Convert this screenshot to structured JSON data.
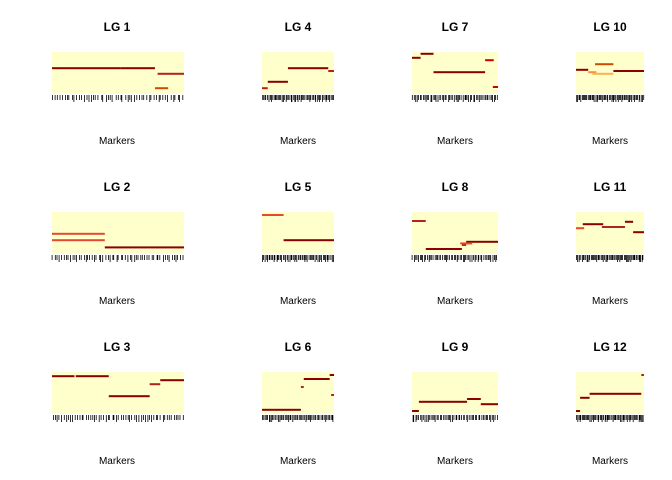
{
  "chart_data": [
    {
      "title": "LG 1",
      "xlabel": "Markers",
      "type": "heatmap",
      "background_color": "#FFFFCC",
      "segments": [
        {
          "row": 0.38,
          "x0": 0.0,
          "x1": 0.52,
          "color": "#8B0000"
        },
        {
          "row": 0.38,
          "x0": 0.52,
          "x1": 0.78,
          "color": "#8B0000"
        },
        {
          "row": 0.52,
          "x0": 0.8,
          "x1": 1.0,
          "color": "#B22222"
        },
        {
          "row": 0.88,
          "x0": 0.78,
          "x1": 0.88,
          "color": "#CC4C02"
        }
      ],
      "tick_count": 55
    },
    {
      "title": "LG 2",
      "xlabel": "Markers",
      "type": "heatmap",
      "background_color": "#FFFFCC",
      "segments": [
        {
          "row": 0.52,
          "x0": 0.0,
          "x1": 0.4,
          "color": "#E34A33"
        },
        {
          "row": 0.68,
          "x0": 0.0,
          "x1": 0.4,
          "color": "#E34A33"
        },
        {
          "row": 0.86,
          "x0": 0.4,
          "x1": 1.0,
          "color": "#8B0000"
        }
      ],
      "tick_count": 60
    },
    {
      "title": "LG 3",
      "xlabel": "Markers",
      "type": "heatmap",
      "background_color": "#FFFFCC",
      "segments": [
        {
          "row": 0.08,
          "x0": 0.0,
          "x1": 0.17,
          "color": "#8B0000"
        },
        {
          "row": 0.08,
          "x0": 0.18,
          "x1": 0.43,
          "color": "#8B0000"
        },
        {
          "row": 0.58,
          "x0": 0.43,
          "x1": 0.74,
          "color": "#8B0000"
        },
        {
          "row": 0.28,
          "x0": 0.74,
          "x1": 0.82,
          "color": "#B22222"
        },
        {
          "row": 0.18,
          "x0": 0.82,
          "x1": 1.0,
          "color": "#8B0000"
        }
      ],
      "tick_count": 60
    },
    {
      "title": "LG 4",
      "xlabel": "Markers",
      "type": "heatmap",
      "background_color": "#FFFFCC",
      "segments": [
        {
          "row": 0.88,
          "x0": 0.0,
          "x1": 0.08,
          "color": "#B22222"
        },
        {
          "row": 0.72,
          "x0": 0.08,
          "x1": 0.36,
          "color": "#8B0000"
        },
        {
          "row": 0.38,
          "x0": 0.36,
          "x1": 0.92,
          "color": "#8B0000"
        },
        {
          "row": 0.45,
          "x0": 0.92,
          "x1": 1.0,
          "color": "#B22222"
        }
      ],
      "tick_count": 58
    },
    {
      "title": "LG 5",
      "xlabel": "Markers",
      "type": "heatmap",
      "background_color": "#FFFFCC",
      "segments": [
        {
          "row": 0.05,
          "x0": 0.0,
          "x1": 0.3,
          "color": "#E34A33"
        },
        {
          "row": 0.68,
          "x0": 0.3,
          "x1": 1.0,
          "color": "#8B0000"
        }
      ],
      "tick_count": 56
    },
    {
      "title": "LG 6",
      "xlabel": "Markers",
      "type": "heatmap",
      "background_color": "#FFFFCC",
      "segments": [
        {
          "row": 0.15,
          "x0": 0.58,
          "x1": 0.94,
          "color": "#8B0000"
        },
        {
          "row": 0.05,
          "x0": 0.94,
          "x1": 1.0,
          "color": "#8B0000"
        },
        {
          "row": 0.35,
          "x0": 0.54,
          "x1": 0.58,
          "color": "#B22222"
        },
        {
          "row": 0.92,
          "x0": 0.0,
          "x1": 0.54,
          "color": "#8B0000"
        },
        {
          "row": 0.55,
          "x0": 0.96,
          "x1": 1.0,
          "color": "#B22222"
        }
      ],
      "tick_count": 55
    },
    {
      "title": "LG 7",
      "xlabel": "Markers",
      "type": "heatmap",
      "background_color": "#FFFFCC",
      "segments": [
        {
          "row": 0.12,
          "x0": 0.0,
          "x1": 0.1,
          "color": "#8B0000"
        },
        {
          "row": 0.02,
          "x0": 0.1,
          "x1": 0.25,
          "color": "#8B0000"
        },
        {
          "row": 0.48,
          "x0": 0.25,
          "x1": 0.85,
          "color": "#8B0000"
        },
        {
          "row": 0.18,
          "x0": 0.85,
          "x1": 0.95,
          "color": "#CC0000"
        },
        {
          "row": 0.85,
          "x0": 0.94,
          "x1": 1.0,
          "color": "#CC0000"
        }
      ],
      "tick_count": 58
    },
    {
      "title": "LG 8",
      "xlabel": "Markers",
      "type": "heatmap",
      "background_color": "#FFFFCC",
      "segments": [
        {
          "row": 0.2,
          "x0": 0.0,
          "x1": 0.16,
          "color": "#B22222"
        },
        {
          "row": 0.9,
          "x0": 0.16,
          "x1": 0.58,
          "color": "#8B0000"
        },
        {
          "row": 0.8,
          "x0": 0.58,
          "x1": 0.63,
          "color": "#B22222"
        },
        {
          "row": 0.72,
          "x0": 0.63,
          "x1": 1.0,
          "color": "#8B0000"
        },
        {
          "row": 0.76,
          "x0": 0.56,
          "x1": 0.7,
          "color": "#E34A33"
        }
      ],
      "tick_count": 58
    },
    {
      "title": "LG 9",
      "xlabel": "Markers",
      "type": "heatmap",
      "background_color": "#FFFFCC",
      "segments": [
        {
          "row": 0.95,
          "x0": 0.0,
          "x1": 0.08,
          "color": "#8B0000"
        },
        {
          "row": 0.72,
          "x0": 0.08,
          "x1": 0.64,
          "color": "#8B0000"
        },
        {
          "row": 0.65,
          "x0": 0.64,
          "x1": 0.8,
          "color": "#8B0000"
        },
        {
          "row": 0.78,
          "x0": 0.8,
          "x1": 1.0,
          "color": "#8B0000"
        }
      ],
      "tick_count": 56
    },
    {
      "title": "LG 10",
      "xlabel": "Markers",
      "type": "heatmap",
      "background_color": "#FFFFCC",
      "segments": [
        {
          "row": 0.42,
          "x0": 0.0,
          "x1": 0.18,
          "color": "#8B0000"
        },
        {
          "row": 0.48,
          "x0": 0.18,
          "x1": 0.3,
          "color": "#FD8D3C"
        },
        {
          "row": 0.28,
          "x0": 0.28,
          "x1": 0.55,
          "color": "#CC4C02"
        },
        {
          "row": 0.45,
          "x0": 0.55,
          "x1": 1.0,
          "color": "#8B0000"
        },
        {
          "row": 0.52,
          "x0": 0.24,
          "x1": 0.55,
          "color": "#FEB24C"
        }
      ],
      "tick_count": 60
    },
    {
      "title": "LG 11",
      "xlabel": "Markers",
      "type": "heatmap",
      "background_color": "#FFFFCC",
      "segments": [
        {
          "row": 0.28,
          "x0": 0.1,
          "x1": 0.4,
          "color": "#8B0000"
        },
        {
          "row": 0.35,
          "x0": 0.38,
          "x1": 0.72,
          "color": "#B22222"
        },
        {
          "row": 0.22,
          "x0": 0.72,
          "x1": 0.84,
          "color": "#8B0000"
        },
        {
          "row": 0.38,
          "x0": 0.0,
          "x1": 0.12,
          "color": "#E34A33"
        },
        {
          "row": 0.48,
          "x0": 0.84,
          "x1": 1.0,
          "color": "#8B0000"
        }
      ],
      "tick_count": 60
    },
    {
      "title": "LG 12",
      "xlabel": "Markers",
      "type": "heatmap",
      "background_color": "#FFFFCC",
      "segments": [
        {
          "row": 0.95,
          "x0": 0.0,
          "x1": 0.06,
          "color": "#8B0000"
        },
        {
          "row": 0.62,
          "x0": 0.06,
          "x1": 0.2,
          "color": "#8B0000"
        },
        {
          "row": 0.52,
          "x0": 0.2,
          "x1": 0.96,
          "color": "#8B0000"
        },
        {
          "row": 0.05,
          "x0": 0.96,
          "x1": 1.0,
          "color": "#B22222"
        }
      ],
      "tick_count": 60
    }
  ]
}
